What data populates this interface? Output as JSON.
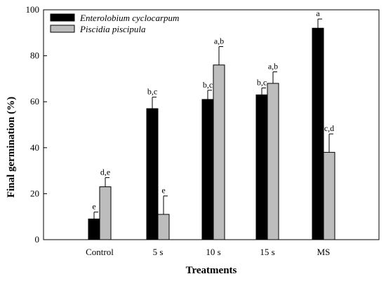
{
  "chart_data": {
    "type": "bar",
    "xlabel": "Treatments",
    "ylabel": "Final germination (%)",
    "ylim": [
      0,
      100
    ],
    "yticks": [
      0,
      20,
      40,
      60,
      80,
      100
    ],
    "categories": [
      "Control",
      "5 s",
      "10 s",
      "15 s",
      "MS"
    ],
    "legend_position": "top-left",
    "series": [
      {
        "name": "Enterolobium cyclocarpum",
        "color": "#000000",
        "values": [
          9,
          57,
          61,
          63,
          92
        ],
        "errors": [
          3,
          5,
          4,
          3,
          4
        ],
        "significance": [
          "e",
          "b,c",
          "b,c",
          "b,c",
          "a"
        ]
      },
      {
        "name": "Piscidia piscipula",
        "color": "#bdbdbd",
        "values": [
          23,
          11,
          76,
          68,
          38
        ],
        "errors": [
          4,
          8,
          8,
          5,
          8
        ],
        "significance": [
          "d,e",
          "e",
          "a,b",
          "a,b",
          "c,d"
        ]
      }
    ]
  }
}
